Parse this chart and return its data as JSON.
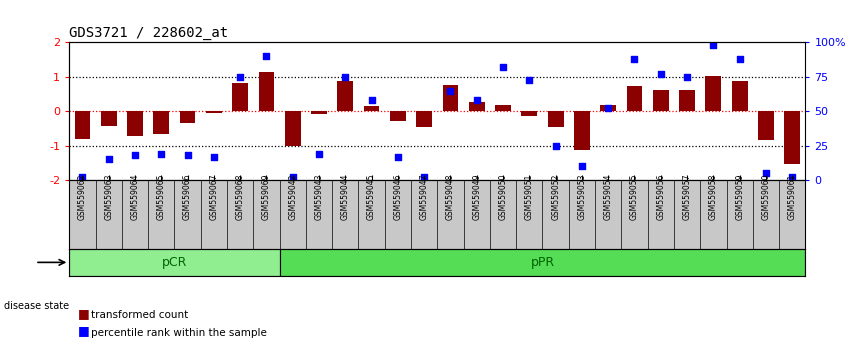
{
  "title": "GDS3721 / 228602_at",
  "samples": [
    "GSM559062",
    "GSM559063",
    "GSM559064",
    "GSM559065",
    "GSM559066",
    "GSM559067",
    "GSM559068",
    "GSM559069",
    "GSM559042",
    "GSM559043",
    "GSM559044",
    "GSM559045",
    "GSM559046",
    "GSM559047",
    "GSM559048",
    "GSM559049",
    "GSM559050",
    "GSM559051",
    "GSM559052",
    "GSM559053",
    "GSM559054",
    "GSM559055",
    "GSM559056",
    "GSM559057",
    "GSM559058",
    "GSM559059",
    "GSM559060",
    "GSM559061"
  ],
  "bar_values": [
    -0.82,
    -0.42,
    -0.72,
    -0.65,
    -0.35,
    -0.05,
    0.82,
    1.15,
    -1.02,
    -0.07,
    0.88,
    0.15,
    -0.28,
    -0.45,
    0.75,
    0.28,
    0.18,
    -0.15,
    -0.45,
    -1.12,
    0.18,
    0.72,
    0.62,
    0.62,
    1.02,
    0.88,
    -0.85,
    -1.55
  ],
  "dot_values": [
    2,
    15,
    18,
    19,
    18,
    17,
    75,
    90,
    2,
    19,
    75,
    58,
    17,
    2,
    65,
    58,
    82,
    73,
    25,
    10,
    52,
    88,
    77,
    75,
    98,
    88,
    5,
    2
  ],
  "groups": [
    {
      "label": "pCR",
      "start": 0,
      "end": 8,
      "color": "#90EE90"
    },
    {
      "label": "pPR",
      "start": 8,
      "end": 28,
      "color": "#55DD55"
    }
  ],
  "bar_color": "#8B0000",
  "dot_color": "#0000FF",
  "bar_width": 0.6,
  "ylim": [
    -2.0,
    2.0
  ],
  "right_ylim": [
    0,
    100
  ],
  "yticks": [
    -2,
    -1,
    0,
    1,
    2
  ],
  "right_yticks": [
    0,
    25,
    50,
    75,
    100
  ],
  "right_ytick_labels": [
    "0",
    "25",
    "50",
    "75",
    "100%"
  ],
  "dotted_lines_black": [
    -1,
    1
  ],
  "dotted_lines_red": [
    0
  ],
  "legend_items": [
    {
      "label": "transformed count",
      "color": "#8B0000"
    },
    {
      "label": "percentile rank within the sample",
      "color": "#0000FF"
    }
  ],
  "disease_state_label": "disease state",
  "bg_color": "#FFFFFF",
  "axis_bg_color": "#FFFFFF",
  "xtick_bg_color": "#C8C8C8"
}
